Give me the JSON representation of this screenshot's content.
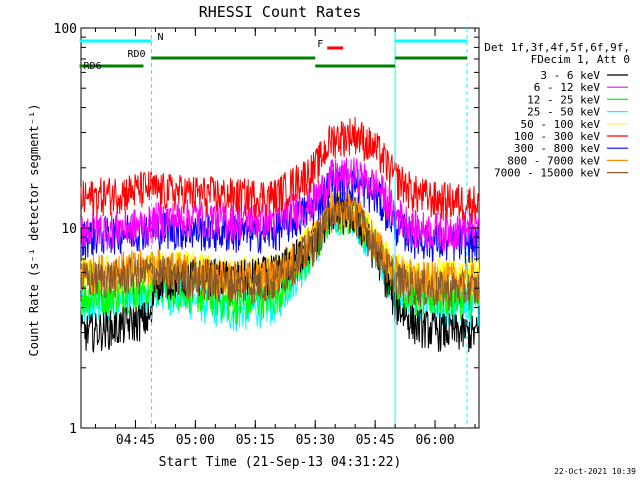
{
  "chart_data": {
    "type": "line",
    "title": "RHESSI Count Rates",
    "xlabel": "Start Time (21-Sep-13 04:31:22)",
    "ylabel": "Count Rate (s⁻¹ detector segment⁻¹)",
    "y_scale": "log",
    "ylim": [
      1,
      100
    ],
    "xlim": [
      "04:31:22",
      "06:11:00"
    ],
    "x_ticks": [
      "04:45",
      "05:00",
      "05:15",
      "05:30",
      "05:45",
      "06:00"
    ],
    "y_ticks": [
      "1",
      "10",
      "100"
    ],
    "grid": false,
    "legend_position": "right",
    "legend_header": [
      "Det 1f,3f,4f,5f,6f,9f,",
      "FDecim 1, Att 0"
    ],
    "series": [
      {
        "name": "3 - 6 keV",
        "color": "#000000",
        "x": [
          "04:31",
          "04:40",
          "04:49",
          "04:50",
          "05:00",
          "05:10",
          "05:20",
          "05:30",
          "05:34",
          "05:40",
          "05:46",
          "05:50",
          "05:55",
          "06:00",
          "06:10"
        ],
        "y": [
          3.0,
          3.2,
          3.6,
          5.5,
          5.8,
          5.6,
          6.0,
          8.5,
          12.0,
          11.5,
          7.0,
          4.2,
          3.3,
          3.1,
          3.0
        ]
      },
      {
        "name": "6 - 12 keV",
        "color": "#ff00ff",
        "x": [
          "04:31",
          "04:40",
          "04:49",
          "04:50",
          "05:00",
          "05:10",
          "05:20",
          "05:30",
          "05:34",
          "05:40",
          "05:46",
          "05:50",
          "05:55",
          "06:00",
          "06:10"
        ],
        "y": [
          10.0,
          10.0,
          10.5,
          11.0,
          11.5,
          11.0,
          11.0,
          14.0,
          18.0,
          18.5,
          16.0,
          12.0,
          10.0,
          9.8,
          10.0
        ]
      },
      {
        "name": "12 - 25 keV",
        "color": "#00ff00",
        "x": [
          "04:31",
          "04:40",
          "04:49",
          "04:50",
          "05:00",
          "05:10",
          "05:20",
          "05:30",
          "05:34",
          "05:40",
          "05:46",
          "05:50",
          "05:55",
          "06:00",
          "06:10"
        ],
        "y": [
          4.5,
          4.7,
          5.0,
          5.2,
          4.8,
          4.2,
          4.6,
          8.0,
          12.0,
          11.5,
          7.5,
          5.0,
          4.6,
          4.5,
          4.5
        ]
      },
      {
        "name": "25 - 50 keV",
        "color": "#00ffff",
        "x": [
          "04:31",
          "04:40",
          "04:49",
          "04:50",
          "05:00",
          "05:10",
          "05:20",
          "05:30",
          "05:34",
          "05:40",
          "05:46",
          "05:50",
          "05:55",
          "06:00",
          "06:10"
        ],
        "y": [
          4.0,
          4.2,
          4.6,
          4.8,
          4.4,
          3.8,
          4.2,
          8.0,
          12.0,
          11.5,
          7.0,
          4.5,
          4.2,
          4.0,
          4.0
        ]
      },
      {
        "name": "50 - 100 keV",
        "color": "#ffff00",
        "x": [
          "04:31",
          "04:40",
          "04:49",
          "04:50",
          "05:00",
          "05:10",
          "05:20",
          "05:30",
          "05:34",
          "05:40",
          "05:46",
          "05:50",
          "05:55",
          "06:00",
          "06:10"
        ],
        "y": [
          6.0,
          6.0,
          6.3,
          6.5,
          6.2,
          5.8,
          6.1,
          9.0,
          13.0,
          12.5,
          8.0,
          6.2,
          6.0,
          5.8,
          6.0
        ]
      },
      {
        "name": "100 - 300 keV",
        "color": "#ff0000",
        "x": [
          "04:31",
          "04:40",
          "04:49",
          "04:50",
          "05:00",
          "05:10",
          "05:20",
          "05:30",
          "05:34",
          "05:40",
          "05:46",
          "05:50",
          "05:55",
          "06:00",
          "06:10"
        ],
        "y": [
          14.0,
          15.0,
          16.0,
          15.5,
          15.0,
          14.5,
          14.5,
          20.0,
          28.0,
          30.0,
          24.0,
          18.0,
          15.0,
          14.0,
          13.5
        ]
      },
      {
        "name": "300 - 800 keV",
        "color": "#0000ff",
        "x": [
          "04:31",
          "04:40",
          "04:49",
          "04:50",
          "05:00",
          "05:10",
          "05:20",
          "05:30",
          "05:34",
          "05:40",
          "05:46",
          "05:50",
          "05:55",
          "06:00",
          "06:10"
        ],
        "y": [
          9.0,
          9.5,
          10.0,
          10.0,
          9.8,
          9.5,
          9.6,
          13.0,
          17.0,
          17.0,
          14.0,
          10.5,
          9.0,
          8.6,
          8.5
        ]
      },
      {
        "name": "800 - 7000 keV",
        "color": "#ff8c00",
        "x": [
          "04:31",
          "04:40",
          "04:49",
          "04:50",
          "05:00",
          "05:10",
          "05:20",
          "05:30",
          "05:34",
          "05:40",
          "05:46",
          "05:50",
          "05:55",
          "06:00",
          "06:10"
        ],
        "y": [
          6.0,
          6.2,
          6.5,
          6.5,
          6.0,
          5.6,
          5.8,
          9.0,
          13.0,
          12.5,
          8.0,
          6.0,
          5.6,
          5.5,
          5.5
        ]
      },
      {
        "name": "7000 - 15000 keV",
        "color": "#8b5a2b",
        "x": [
          "04:31",
          "04:40",
          "04:49",
          "04:50",
          "05:00",
          "05:10",
          "05:20",
          "05:30",
          "05:34",
          "05:40",
          "05:46",
          "05:50",
          "05:55",
          "06:00",
          "06:10"
        ],
        "y": [
          5.5,
          5.7,
          6.0,
          6.0,
          5.6,
          5.2,
          5.4,
          8.5,
          12.5,
          12.0,
          7.5,
          5.6,
          5.2,
          5.0,
          5.0
        ]
      }
    ],
    "annotations": [
      {
        "label": "N",
        "color": "#00ffff",
        "x": [
          "04:31",
          "04:49"
        ]
      },
      {
        "label": "RD0",
        "color": "#007f00",
        "x": [
          "04:49",
          "05:30"
        ]
      },
      {
        "label": "RD6",
        "color": "#007f00",
        "x": [
          "04:31",
          "04:47"
        ]
      },
      {
        "label": "F",
        "color": "#ff0000",
        "x": [
          "05:33",
          "05:37"
        ]
      }
    ],
    "extra_bars": [
      {
        "color": "#00ffff",
        "x": [
          "05:50",
          "06:08"
        ]
      },
      {
        "color": "#007f00",
        "x": [
          "05:30",
          "05:50"
        ]
      },
      {
        "color": "#007f00",
        "x": [
          "05:50",
          "06:08"
        ]
      }
    ],
    "vlines": [
      "04:49",
      "05:50",
      "06:08"
    ]
  },
  "footer": {
    "date": "22-Oct-2021 10:39"
  }
}
